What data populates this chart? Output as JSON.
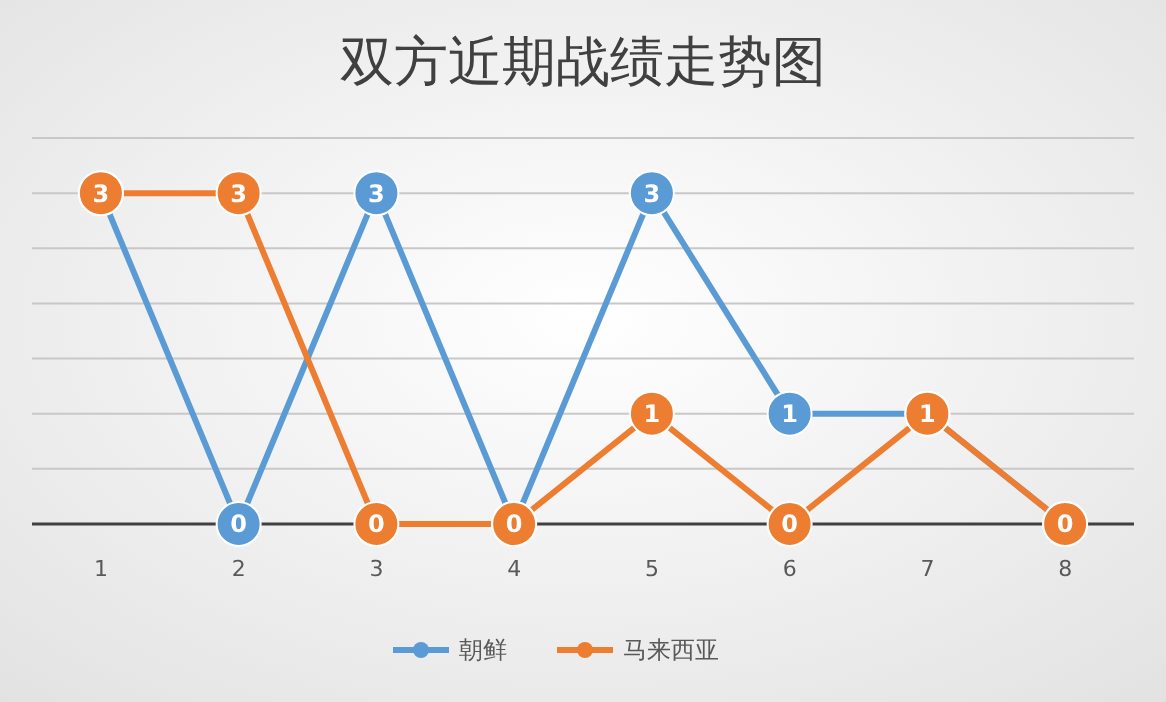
{
  "chart_data": {
    "type": "line",
    "title": "双方近期战绩走势图",
    "categories": [
      "1",
      "2",
      "3",
      "4",
      "5",
      "6",
      "7",
      "8"
    ],
    "series": [
      {
        "name": "朝鲜",
        "color": "#5b9bd5",
        "values": [
          3,
          0,
          3,
          0,
          3,
          1,
          1,
          0
        ],
        "value_labels": [
          null,
          "0",
          "3",
          null,
          "3",
          "1",
          null,
          null
        ]
      },
      {
        "name": "马来西亚",
        "color": "#ed7d31",
        "values": [
          3,
          3,
          0,
          0,
          1,
          0,
          1,
          0
        ],
        "value_labels": [
          "3",
          "3",
          "0",
          "0",
          "1",
          "0",
          "1",
          "0"
        ]
      }
    ],
    "ylim": [
      0,
      3.5
    ],
    "yticks": [
      {
        "value": 0,
        "label": null
      },
      {
        "value": 0.5,
        "label": null
      },
      {
        "value": 1,
        "label": null
      },
      {
        "value": 1.5,
        "label": null
      },
      {
        "value": 2,
        "label": null
      },
      {
        "value": 2.5,
        "label": null
      },
      {
        "value": 3,
        "label": null
      },
      {
        "value": 3.5,
        "label": null
      }
    ],
    "tick_labels": "x",
    "grid": "y",
    "legend": "bottom",
    "marker": "circle",
    "line_style": "solid"
  }
}
